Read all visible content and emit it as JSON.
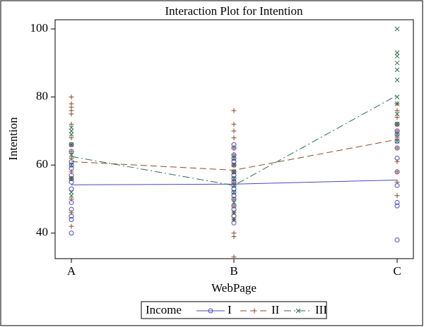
{
  "chart_data": {
    "type": "interaction",
    "title": "Interaction Plot for Intention",
    "xlabel": "WebPage",
    "ylabel": "Intention",
    "categories": [
      "A",
      "B",
      "C"
    ],
    "ylim": [
      32.5,
      102.7
    ],
    "yticks": [
      40,
      60,
      80,
      100
    ],
    "legend_title": "Income",
    "legend": "bottom",
    "series": [
      {
        "name": "I",
        "color": "#4a4ab8",
        "marker": "circle",
        "line_style": "solid",
        "values": [
          54.2,
          54.4,
          55.6
        ],
        "points": [
          [
            40,
            44,
            45,
            47,
            49,
            53,
            55,
            56,
            57,
            59,
            60,
            61,
            64,
            66
          ],
          [
            43,
            45,
            47,
            48,
            50,
            51,
            52,
            53,
            54,
            55,
            56,
            57,
            58,
            60,
            61,
            62,
            63,
            65,
            66
          ],
          [
            38,
            48,
            49,
            54,
            58,
            62,
            65,
            67,
            69,
            70,
            72
          ]
        ]
      },
      {
        "name": "II",
        "color": "#8b4a2b",
        "marker": "plus",
        "line_style": "dashed",
        "values": [
          61,
          58.5,
          67.5
        ],
        "points": [
          [
            42,
            46,
            50,
            56,
            58,
            62,
            64,
            66,
            68,
            72,
            75,
            76,
            77,
            78,
            80
          ],
          [
            33,
            39,
            40,
            44,
            46,
            48,
            50,
            55,
            58,
            60,
            63,
            65,
            68,
            70,
            72,
            76
          ],
          [
            51,
            55,
            58,
            61,
            65,
            68,
            70,
            72,
            74,
            76,
            78
          ]
        ]
      },
      {
        "name": "III",
        "color": "#2e6b4f",
        "marker": "x",
        "line_style": "dashdot",
        "values": [
          62.5,
          54,
          80.5
        ],
        "points": [
          [
            51,
            52,
            56,
            60,
            63,
            66,
            69,
            70,
            71
          ],
          [
            44,
            46,
            49,
            52,
            54,
            56,
            58,
            60,
            62
          ],
          [
            67,
            69,
            72,
            75,
            78,
            80,
            85,
            88,
            90,
            92,
            93,
            100
          ]
        ]
      }
    ]
  }
}
